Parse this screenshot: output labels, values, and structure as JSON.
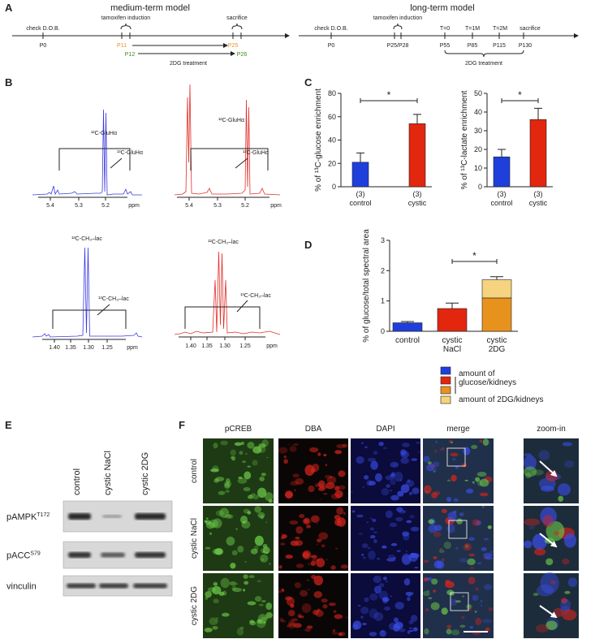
{
  "panel_a": {
    "label": "A",
    "medium": {
      "title": "medium-term model",
      "check": "check D.O.B.",
      "p0": "P0",
      "tamoxifen": "tamoxifen induction",
      "p11": "P11",
      "p12": "P12",
      "sacrifice": "sacrifice",
      "p25": "P25",
      "p26": "P26",
      "treatment": "2DG treatment"
    },
    "long": {
      "title": "long-term model",
      "check": "check D.O.B.",
      "p0": "P0",
      "tamoxifen": "tamoxifen induction",
      "p25_28": "P25/P28",
      "t0": "T=0",
      "p55": "P55",
      "t1": "T=1M",
      "p85": "P85",
      "t2": "T=2M",
      "p115": "P115",
      "sacrifice": "sacrifice",
      "p130": "P130",
      "treatment": "2DG treatment"
    }
  },
  "panel_b": {
    "label": "B",
    "spectra": [
      {
        "peak_labels": [
          "¹²C-GluHα",
          "¹³C-GluHα"
        ],
        "ticks": [
          "5.4",
          "5.3",
          "5.2",
          "ppm"
        ]
      },
      {
        "peak_labels": [
          "¹²C-GluHα",
          "¹³C-GluHα"
        ],
        "ticks": [
          "5.4",
          "5.3",
          "5.2",
          "ppm"
        ]
      },
      {
        "peak_labels": [
          "¹²C-CH₃–lac",
          "¹³C-CH₃–lac"
        ],
        "ticks": [
          "1.40",
          "1.35",
          "1.30",
          "1.25",
          "ppm"
        ]
      },
      {
        "peak_labels": [
          "¹²C-CH₃–lac",
          "¹³C-CH₃–lac"
        ],
        "ticks": [
          "1.40",
          "1.35",
          "1.30",
          "1.25",
          "ppm"
        ]
      }
    ]
  },
  "panel_c_label": "C",
  "panel_d_label": "D",
  "chart_data": [
    {
      "type": "bar",
      "ylabel": "% of ¹³C-glucose enrichment",
      "categories": [
        "control",
        "cystic"
      ],
      "group_sizes": [
        "(3)",
        "(3)"
      ],
      "values": [
        21,
        54
      ],
      "errors": [
        8,
        8
      ],
      "colors": [
        "#1f3fdc",
        "#e3260e"
      ],
      "ylim": [
        0,
        80
      ],
      "yticks": [
        0,
        20,
        40,
        60,
        80
      ],
      "significance": "*"
    },
    {
      "type": "bar",
      "ylabel": "% of ¹³C-lactate enrichment",
      "categories": [
        "control",
        "cystic"
      ],
      "group_sizes": [
        "(3)",
        "(3)"
      ],
      "values": [
        16,
        36
      ],
      "errors": [
        4,
        6
      ],
      "colors": [
        "#1f3fdc",
        "#e3260e"
      ],
      "ylim": [
        0,
        50
      ],
      "yticks": [
        0,
        10,
        20,
        30,
        40,
        50
      ],
      "significance": "*"
    },
    {
      "type": "stacked_bar",
      "ylabel": "% of glucose/total spectral area",
      "categories": [
        "control",
        "cystic NaCl",
        "cystic 2DG"
      ],
      "series": [
        {
          "name": "amount of glucose/kidneys",
          "colors": [
            "#1f3fdc",
            "#e3260e",
            "#e8921e"
          ],
          "values": [
            0.28,
            0.75,
            1.1
          ],
          "errors": [
            0.04,
            0.18,
            0.03
          ]
        },
        {
          "name": "amount of 2DG/kidneys",
          "color": "#f6d37e",
          "values": [
            null,
            null,
            0.6
          ],
          "errors": [
            null,
            null,
            0.1
          ]
        }
      ],
      "ylim": [
        0,
        3
      ],
      "yticks": [
        0,
        1,
        2,
        3
      ],
      "significance": "*"
    }
  ],
  "panel_e": {
    "label": "E",
    "columns": [
      "control",
      "cystic NaCl",
      "cystic 2DG"
    ],
    "rows": [
      {
        "name": "pAMPK",
        "sup": "T172"
      },
      {
        "name": "pACC",
        "sup": "S79"
      },
      {
        "name": "vinculin"
      }
    ]
  },
  "panel_f": {
    "label": "F",
    "columns": [
      "pCREB",
      "DBA",
      "DAPI",
      "merge",
      "zoom-in"
    ],
    "rows": [
      "control",
      "cystic NaCl",
      "cystic 2DG"
    ]
  }
}
